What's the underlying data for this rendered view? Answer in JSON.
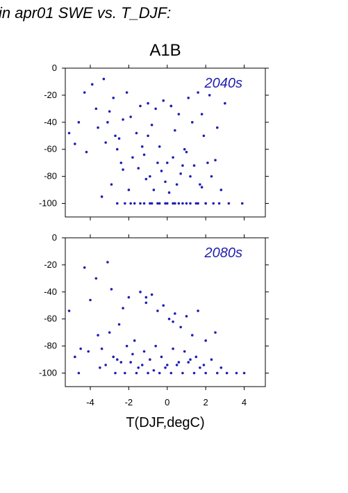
{
  "header": {
    "title": "in apr01 SWE vs. T_DJF:",
    "scenario": "A1B"
  },
  "xlabel": "T(DJF,degC)",
  "colors": {
    "points": "#1f1fb4",
    "period_label": "#2020b0"
  },
  "chart_data": [
    {
      "type": "scatter",
      "annotation": "2040s",
      "xlim": [
        -5.3,
        5.1
      ],
      "ylim": [
        -110,
        0
      ],
      "xticks": [
        -4,
        -2,
        0,
        2,
        4
      ],
      "yticks": [
        0,
        -20,
        -40,
        -60,
        -80,
        -100
      ],
      "grid": false,
      "x": [
        -5.1,
        -4.6,
        -4.3,
        -3.9,
        -3.6,
        -3.3,
        -3.2,
        -3.0,
        -2.8,
        -2.6,
        -2.4,
        -2.1,
        -1.9,
        -1.6,
        -1.4,
        -1.2,
        -1.0,
        -0.8,
        -0.6,
        -0.4,
        -0.2,
        0.0,
        0.2,
        0.4,
        0.6,
        0.9,
        1.1,
        1.3,
        1.6,
        1.9,
        2.2,
        2.6,
        3.0,
        -4.8,
        -4.2,
        -3.7,
        -3.1,
        -2.7,
        -2.3,
        -1.8,
        -1.3,
        -0.9,
        -0.5,
        -0.1,
        0.3,
        0.7,
        1.0,
        1.4,
        1.8,
        2.3,
        2.8,
        -3.4,
        -2.9,
        -2.5,
        -2.0,
        -1.5,
        -1.1,
        -0.7,
        -0.3,
        0.1,
        0.5,
        0.8,
        1.2,
        1.7,
        2.1,
        2.5,
        -2.6,
        -2.2,
        -1.7,
        -1.2,
        -0.8,
        -0.4,
        0.0,
        0.4,
        0.8,
        1.2,
        1.6,
        2.0,
        2.4,
        -1.9,
        -1.4,
        -0.9,
        -0.5,
        -0.1,
        0.3,
        0.6,
        1.0,
        1.5,
        2.0,
        2.7,
        3.2,
        3.9,
        -2.3,
        -1.0,
        0.2,
        1.8
      ],
      "y": [
        -48,
        -40,
        -18,
        -12,
        -44,
        -8,
        -55,
        -32,
        -22,
        -60,
        -70,
        -18,
        -36,
        -48,
        -28,
        -64,
        -26,
        -42,
        -30,
        -58,
        -24,
        -70,
        -28,
        -46,
        -34,
        -60,
        -22,
        -40,
        -18,
        -50,
        -20,
        -44,
        -26,
        -56,
        -62,
        -30,
        -40,
        -50,
        -75,
        -66,
        -58,
        -80,
        -70,
        -84,
        -66,
        -78,
        -62,
        -72,
        -88,
        -80,
        -90,
        -95,
        -86,
        -52,
        -90,
        -74,
        -82,
        -90,
        -76,
        -92,
        -86,
        -72,
        -80,
        -86,
        -70,
        -68,
        -100,
        -100,
        -100,
        -100,
        -100,
        -100,
        -100,
        -100,
        -100,
        -100,
        -100,
        -100,
        -100,
        -100,
        -100,
        -100,
        -100,
        -100,
        -100,
        -100,
        -100,
        -100,
        -100,
        -100,
        -100,
        -100,
        -38,
        -50,
        -28,
        -34
      ]
    },
    {
      "type": "scatter",
      "annotation": "2080s",
      "xlim": [
        -5.3,
        5.1
      ],
      "ylim": [
        -110,
        0
      ],
      "xticks": [
        -4,
        -2,
        0,
        2,
        4
      ],
      "yticks": [
        0,
        -20,
        -40,
        -60,
        -80,
        -100
      ],
      "grid": false,
      "x": [
        -5.1,
        -4.8,
        -4.5,
        -4.3,
        -4.0,
        -3.7,
        -3.4,
        -3.1,
        -2.9,
        -2.6,
        -2.3,
        -2.0,
        -1.7,
        -1.4,
        -1.1,
        -0.8,
        -0.5,
        -0.2,
        0.1,
        0.4,
        0.7,
        1.0,
        1.3,
        1.6,
        2.0,
        2.5,
        -4.6,
        -4.1,
        -3.6,
        -3.2,
        -2.8,
        -2.4,
        -2.1,
        -1.8,
        -1.5,
        -1.2,
        -0.9,
        -0.6,
        -0.3,
        0.0,
        0.3,
        0.6,
        0.9,
        1.2,
        1.5,
        1.9,
        2.3,
        2.8,
        -3.0,
        -2.5,
        -1.9,
        -1.3,
        -0.7,
        -0.1,
        0.5,
        1.1,
        1.7,
        -2.7,
        -2.2,
        -1.6,
        -1.0,
        -0.4,
        0.2,
        0.8,
        1.4,
        2.0,
        2.6,
        3.1,
        3.6,
        4.0,
        -3.5,
        -1.1,
        0.3
      ],
      "y": [
        -54,
        -88,
        -82,
        -22,
        -46,
        -30,
        -82,
        -18,
        -38,
        -90,
        -52,
        -44,
        -76,
        -40,
        -48,
        -42,
        -54,
        -50,
        -60,
        -56,
        -66,
        -58,
        -72,
        -54,
        -76,
        -70,
        -100,
        -84,
        -72,
        -94,
        -88,
        -92,
        -80,
        -86,
        -96,
        -84,
        -90,
        -80,
        -88,
        -94,
        -82,
        -92,
        -84,
        -90,
        -88,
        -94,
        -90,
        -96,
        -70,
        -64,
        -92,
        -94,
        -98,
        -96,
        -94,
        -92,
        -96,
        -100,
        -100,
        -100,
        -100,
        -100,
        -100,
        -100,
        -100,
        -100,
        -100,
        -100,
        -100,
        -100,
        -96,
        -44,
        -62
      ]
    }
  ]
}
